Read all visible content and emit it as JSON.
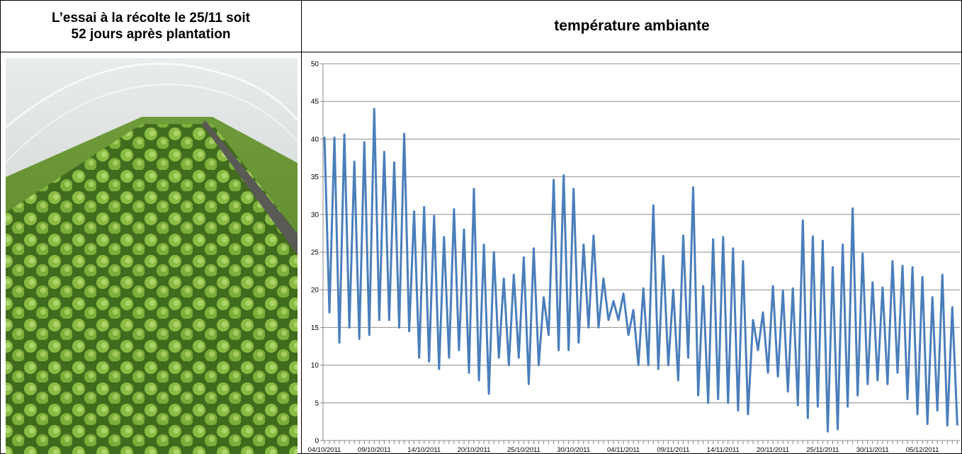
{
  "header": {
    "lines": [
      "L’essai  à la récolte le 25/11 soit",
      "52 jours après plantation"
    ]
  },
  "chart_data": {
    "type": "line",
    "title": "température ambiante",
    "categories": [
      "04/10/2011",
      null,
      null,
      null,
      null,
      null,
      null,
      null,
      null,
      null,
      "09/10/2011",
      null,
      null,
      null,
      null,
      null,
      null,
      null,
      null,
      null,
      "14/10/2011",
      null,
      null,
      null,
      null,
      null,
      null,
      null,
      null,
      null,
      "20/10/2011",
      null,
      null,
      null,
      null,
      null,
      null,
      null,
      null,
      null,
      "25/10/2011",
      null,
      null,
      null,
      null,
      null,
      null,
      null,
      null,
      null,
      "30/10/2011",
      null,
      null,
      null,
      null,
      null,
      null,
      null,
      null,
      null,
      "04/11/2011",
      null,
      null,
      null,
      null,
      null,
      null,
      null,
      null,
      null,
      "09/11/2011",
      null,
      null,
      null,
      null,
      null,
      null,
      null,
      null,
      null,
      "14/11/2011",
      null,
      null,
      null,
      null,
      null,
      null,
      null,
      null,
      null,
      "20/11/2011",
      null,
      null,
      null,
      null,
      null,
      null,
      null,
      null,
      null,
      "25/11/2011",
      null,
      null,
      null,
      null,
      null,
      null,
      null,
      null,
      null,
      "30/11/2011",
      null,
      null,
      null,
      null,
      null,
      null,
      null,
      null,
      null,
      "05/12/2011",
      null,
      null,
      null,
      null,
      null,
      null,
      null
    ],
    "values": [
      40.3,
      17,
      40.2,
      13,
      40.6,
      15,
      37,
      13.5,
      39.6,
      14,
      44,
      16,
      38.3,
      16,
      36.9,
      15,
      40.7,
      14.5,
      30.4,
      11,
      31,
      10.5,
      29.8,
      9.5,
      27,
      11,
      30.7,
      12,
      28,
      9,
      33.4,
      8,
      26,
      6.2,
      25,
      11,
      21.5,
      10,
      22,
      11,
      24.3,
      7.5,
      25.5,
      10,
      19,
      14,
      34.6,
      12,
      35.2,
      12,
      33.4,
      13,
      26,
      15,
      27.2,
      15,
      21.5,
      16,
      18.5,
      16,
      19.5,
      14,
      17.3,
      10,
      20.2,
      10,
      31.2,
      9.5,
      24.5,
      10,
      20,
      8,
      27.2,
      11,
      33.6,
      6,
      20.5,
      5,
      26.7,
      5.5,
      27,
      5,
      25.5,
      4,
      23.8,
      3.5,
      16,
      12,
      17,
      9,
      20.5,
      8.5,
      19.9,
      6.5,
      20.2,
      4.7,
      29.2,
      3,
      27.1,
      4.5,
      26.5,
      1.2,
      23,
      1.5,
      26,
      4.5,
      30.8,
      6,
      24.8,
      7.5,
      21,
      8,
      20.3,
      7.5,
      23.8,
      9,
      23.2,
      5.5,
      23,
      3.5,
      21.7,
      2.2,
      19,
      4,
      22,
      2,
      17.7,
      2
    ],
    "color": "#4a7ebb",
    "ylim": [
      0,
      50
    ],
    "yticks": [
      0,
      5,
      10,
      15,
      20,
      25,
      30,
      35,
      40,
      45,
      50
    ],
    "grid": true
  }
}
